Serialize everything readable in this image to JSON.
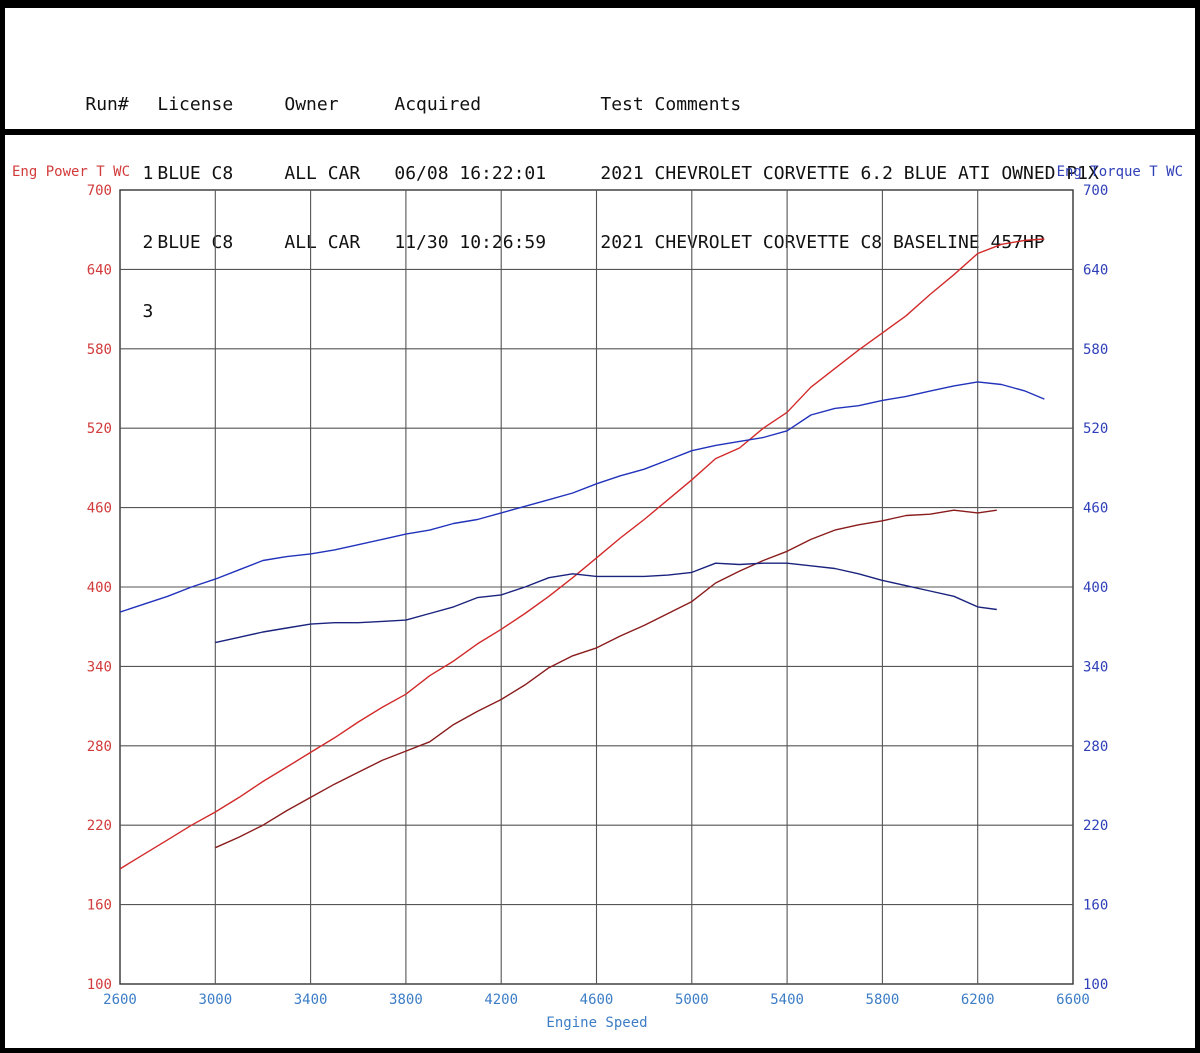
{
  "header": {
    "columns": {
      "run": "Run#",
      "license": "License",
      "owner": "Owner",
      "acquired": "Acquired",
      "comments": "Test Comments"
    },
    "rows": [
      {
        "run": "1",
        "license": "BLUE C8",
        "owner": "ALL CAR",
        "acquired": "06/08 16:22:01",
        "comments": "2021 CHEVROLET CORVETTE 6.2 BLUE ATI OWNED P1X"
      },
      {
        "run": "2",
        "license": "BLUE C8",
        "owner": "ALL CAR",
        "acquired": "11/30 10:26:59",
        "comments": "2021 CHEVROLET CORVETTE C8 BASELINE 457HP"
      },
      {
        "run": "3",
        "license": "",
        "owner": "",
        "acquired": "",
        "comments": ""
      }
    ]
  },
  "chart_data": {
    "type": "line",
    "title": "",
    "xlabel": "Engine Speed",
    "ylabel_left": "Eng Power T WC",
    "ylabel_right": "Eng Torque T WC",
    "xlim": [
      2600,
      6600
    ],
    "ylim": [
      100,
      700
    ],
    "x_ticks": [
      2600,
      3000,
      3400,
      3800,
      4200,
      4600,
      5000,
      5400,
      5800,
      6200,
      6600
    ],
    "y_ticks": [
      100,
      160,
      220,
      280,
      340,
      400,
      460,
      520,
      580,
      640,
      700
    ],
    "grid": true,
    "colors": {
      "power_run1": "#d22a2a",
      "power_run2": "#8a1c1c",
      "torque_run1": "#2233bb",
      "torque_run2": "#1a237e",
      "left_axis": "#d23b3b",
      "right_axis": "#2f3fb8",
      "x_axis": "#3c7dc6",
      "grid": "#555555"
    },
    "series": [
      {
        "axis": "left",
        "color": "#d22a2a",
        "x": [
          2600,
          2700,
          2800,
          2900,
          3000,
          3100,
          3200,
          3300,
          3400,
          3500,
          3600,
          3700,
          3800,
          3900,
          4000,
          4100,
          4200,
          4300,
          4400,
          4500,
          4600,
          4700,
          4800,
          4900,
          5000,
          5100,
          5200,
          5300,
          5400,
          5500,
          5600,
          5700,
          5800,
          5900,
          6000,
          6100,
          6200,
          6300,
          6400,
          6480
        ],
        "y": [
          187,
          198,
          209,
          220,
          230,
          241,
          253,
          264,
          275,
          286,
          298,
          309,
          319,
          333,
          344,
          357,
          368,
          380,
          393,
          407,
          422,
          437,
          451,
          466,
          481,
          497,
          505,
          520,
          532,
          551,
          565,
          579,
          592,
          605,
          621,
          636,
          652,
          659,
          662,
          663
        ]
      },
      {
        "axis": "left",
        "color": "#8a1c1c",
        "x": [
          3000,
          3100,
          3200,
          3300,
          3400,
          3500,
          3600,
          3700,
          3800,
          3900,
          4000,
          4100,
          4200,
          4300,
          4400,
          4500,
          4600,
          4700,
          4800,
          4900,
          5000,
          5100,
          5200,
          5300,
          5400,
          5500,
          5600,
          5700,
          5800,
          5900,
          6000,
          6100,
          6200,
          6280
        ],
        "y": [
          203,
          211,
          220,
          231,
          241,
          251,
          260,
          269,
          276,
          283,
          296,
          306,
          315,
          326,
          339,
          348,
          354,
          363,
          371,
          380,
          389,
          403,
          412,
          420,
          427,
          436,
          443,
          447,
          450,
          454,
          455,
          458,
          456,
          458
        ]
      },
      {
        "axis": "right",
        "color": "#2233bb",
        "x": [
          2600,
          2700,
          2800,
          2900,
          3000,
          3100,
          3200,
          3300,
          3400,
          3500,
          3600,
          3700,
          3800,
          3900,
          4000,
          4100,
          4200,
          4300,
          4400,
          4500,
          4600,
          4700,
          4800,
          4900,
          5000,
          5100,
          5200,
          5300,
          5400,
          5500,
          5600,
          5700,
          5800,
          5900,
          6000,
          6100,
          6200,
          6300,
          6400,
          6480
        ],
        "y": [
          381,
          387,
          393,
          400,
          406,
          413,
          420,
          423,
          425,
          428,
          432,
          436,
          440,
          443,
          448,
          451,
          456,
          461,
          466,
          471,
          478,
          484,
          489,
          496,
          503,
          507,
          510,
          513,
          518,
          530,
          535,
          537,
          541,
          544,
          548,
          552,
          555,
          553,
          548,
          542
        ]
      },
      {
        "axis": "right",
        "color": "#1a237e",
        "x": [
          3000,
          3100,
          3200,
          3300,
          3400,
          3500,
          3600,
          3700,
          3800,
          3900,
          4000,
          4100,
          4200,
          4300,
          4400,
          4500,
          4600,
          4700,
          4800,
          4900,
          5000,
          5100,
          5200,
          5300,
          5400,
          5500,
          5600,
          5700,
          5800,
          5900,
          6000,
          6100,
          6200,
          6280
        ],
        "y": [
          358,
          362,
          366,
          369,
          372,
          373,
          373,
          374,
          375,
          380,
          385,
          392,
          394,
          400,
          407,
          410,
          408,
          408,
          408,
          409,
          411,
          418,
          417,
          418,
          418,
          416,
          414,
          410,
          405,
          401,
          397,
          393,
          385,
          383
        ]
      }
    ]
  }
}
